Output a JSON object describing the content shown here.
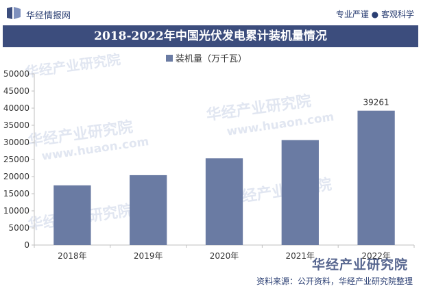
{
  "header": {
    "brand": "华经情报网",
    "slogan_left": "专业严谨",
    "slogan_sep": "●",
    "slogan_right": "客观科学"
  },
  "watermarks": [
    "华经产业研究院",
    "www.huaon.com"
  ],
  "footer": {
    "source": "资料来源：公开资料，华经产业研究院整理",
    "brand_watermark": "华经产业研究院"
  },
  "colors": {
    "bar": "#6a7ba3",
    "title_band": "#3c4d7d",
    "axis": "#bfbfbf"
  },
  "chart_data": {
    "type": "bar",
    "title": "2018-2022年中国光伏发电累计装机量情况",
    "categories": [
      "2018年",
      "2019年",
      "2020年",
      "2021年",
      "2022年"
    ],
    "series": [
      {
        "name": "装机量（万千瓦）",
        "values": [
          17446,
          20418,
          25343,
          30656,
          39261
        ]
      }
    ],
    "data_labels": {
      "2022年": "39261"
    },
    "ylim": [
      0,
      50000
    ],
    "yticks": [
      0,
      5000,
      10000,
      15000,
      20000,
      25000,
      30000,
      35000,
      40000,
      45000,
      50000
    ],
    "grid": false,
    "legend": "top"
  }
}
